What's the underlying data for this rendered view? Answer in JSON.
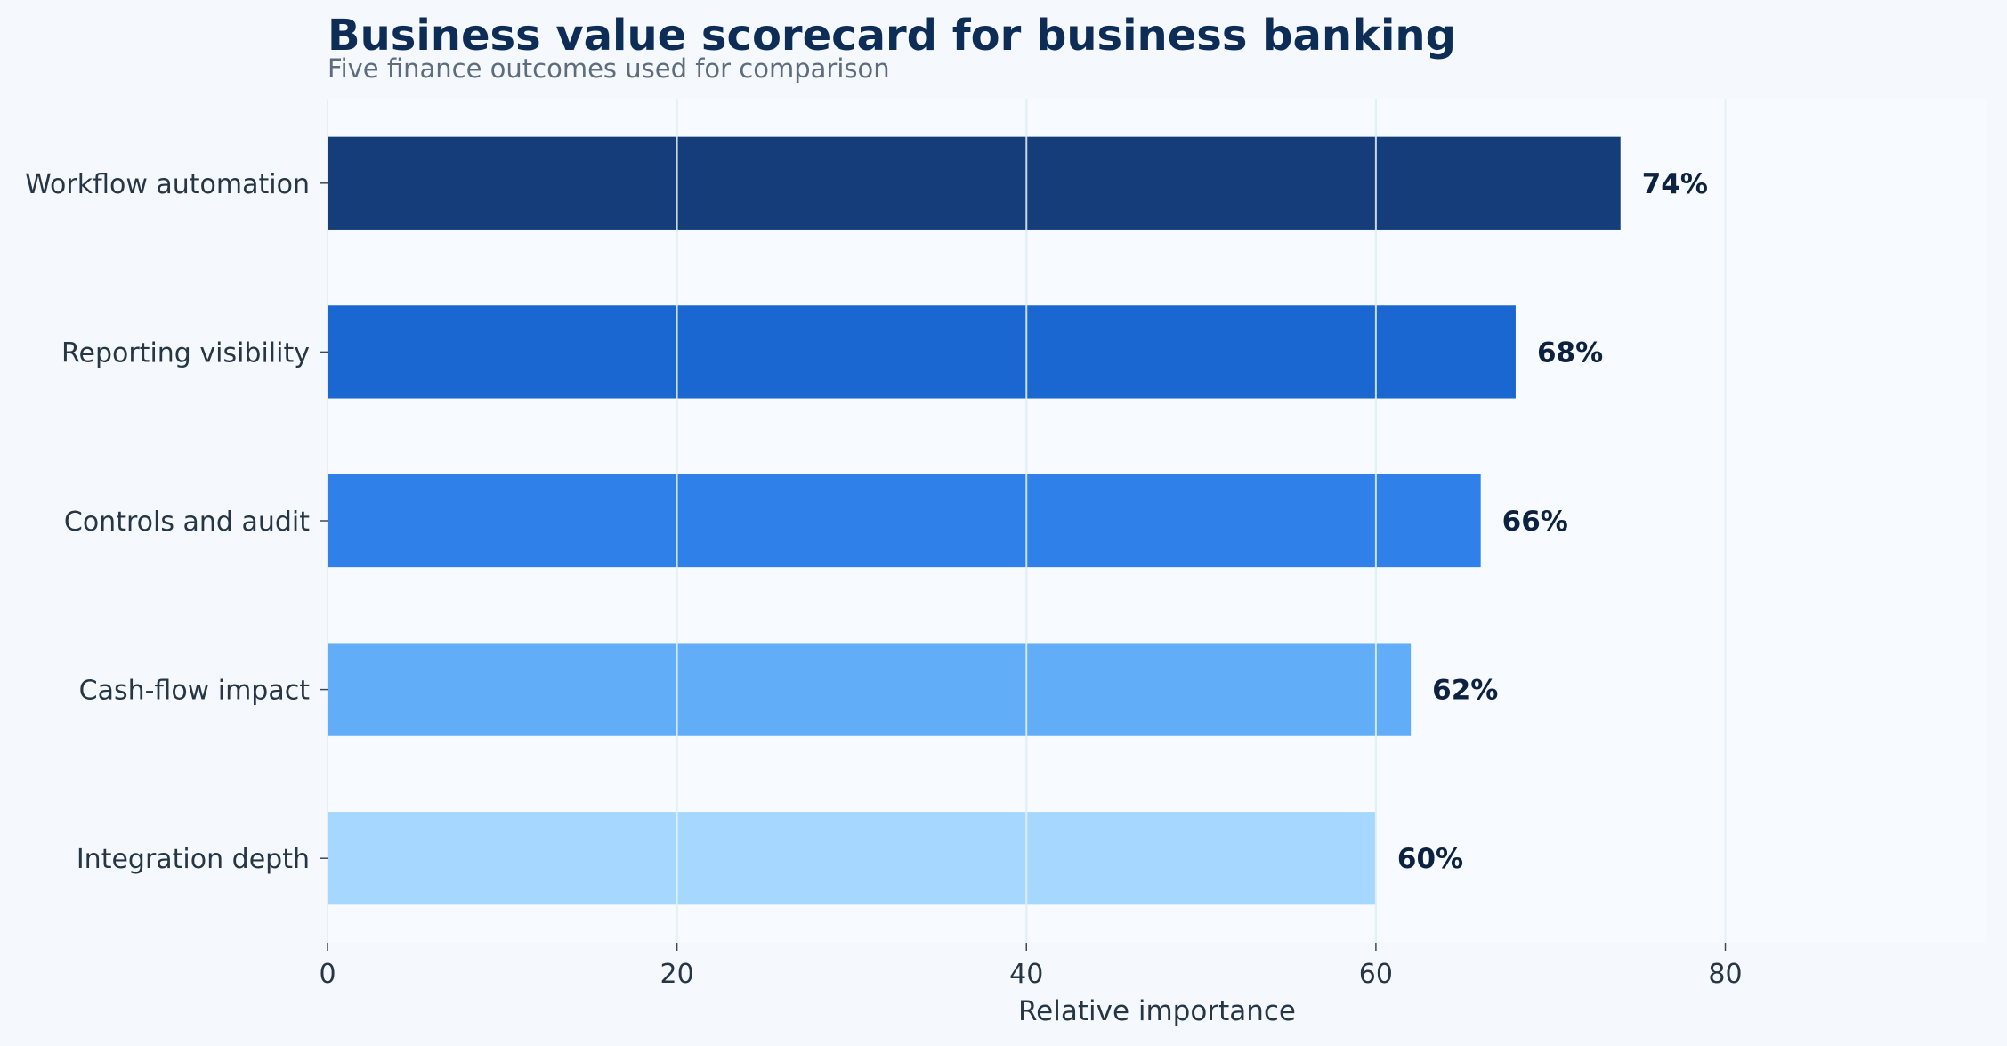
{
  "chart_data": {
    "type": "bar",
    "orientation": "horizontal",
    "title": "Business value scorecard for business banking",
    "subtitle": "Five finance outcomes used for comparison",
    "xlabel": "Relative importance",
    "ylabel": "",
    "categories": [
      "Workflow automation",
      "Reporting visibility",
      "Controls and audit",
      "Cash-flow impact",
      "Integration depth"
    ],
    "values": [
      74,
      68,
      66,
      62,
      60
    ],
    "value_labels": [
      "74%",
      "68%",
      "66%",
      "62%",
      "60%"
    ],
    "bar_colors": [
      "#143d7a",
      "#1b67d1",
      "#2f80e8",
      "#62adf7",
      "#a6d8ff"
    ],
    "xticks": [
      0,
      20,
      40,
      60,
      80
    ],
    "xlim": [
      0,
      95
    ],
    "grid": "vertical",
    "legend": "none"
  }
}
